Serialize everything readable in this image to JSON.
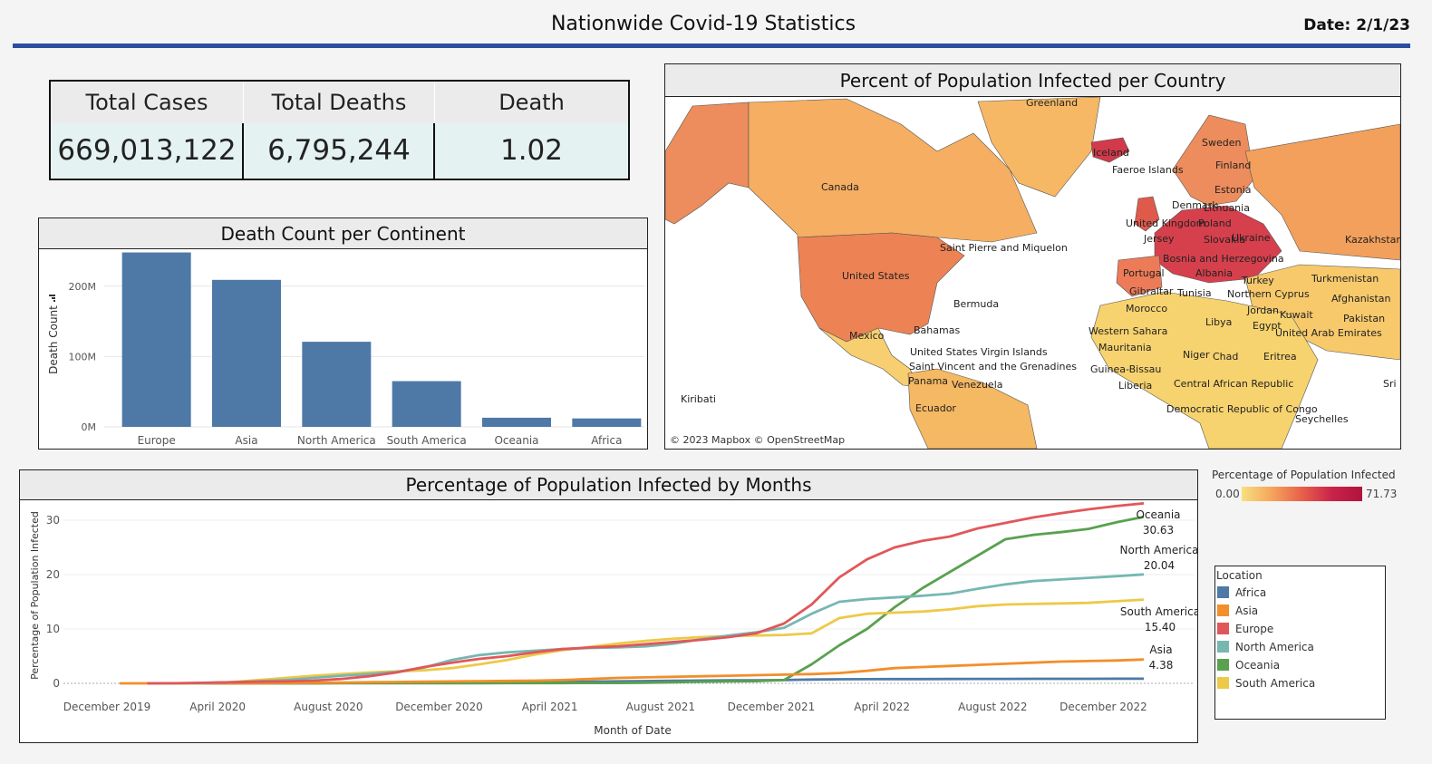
{
  "header": {
    "title": "Nationwide Covid-19 Statistics",
    "date": "Date: 2/1/23"
  },
  "kpis": {
    "total_cases_label": "Total Cases",
    "total_cases": "669,013,122",
    "total_deaths_label": "Total Deaths",
    "total_deaths": "6,795,244",
    "death_pct_label": "Death Percentage",
    "death_pct": "1.02"
  },
  "map": {
    "title": "Percent of Population Infected per Country",
    "copyright": "© 2023 Mapbox © OpenStreetMap",
    "labels": [
      "Greenland",
      "Iceland",
      "Faeroe Islands",
      "Sweden",
      "Finland",
      "Estonia",
      "Lithuania",
      "Denmark",
      "United Kingdom",
      "Poland",
      "Jersey",
      "Slovakia",
      "Ukraine",
      "Kazakhstan",
      "Bosnia and Herzegovina",
      "Albania",
      "Portugal",
      "Turkey",
      "Turkmenistan",
      "Gibraltar",
      "Tunisia",
      "Northern Cyprus",
      "Afghanistan",
      "Morocco",
      "Jordan",
      "Kuwait",
      "Pakistan",
      "Libya",
      "Egypt",
      "United Arab Emirates",
      "Western Sahara",
      "Mauritania",
      "Niger",
      "Chad",
      "Eritrea",
      "Guinea-Bissau",
      "Liberia",
      "Central African Republic",
      "Democratic Republic of Congo",
      "Seychelles",
      "Sri",
      "Canada",
      "Saint Pierre and Miquelon",
      "United States",
      "Bermuda",
      "Bahamas",
      "Mexico",
      "United States Virgin Islands",
      "Saint Vincent and the Grenadines",
      "Panama",
      "Venezuela",
      "Ecuador",
      "Kiribati"
    ],
    "legend_title": "Percentage of Population Infected",
    "legend_min": "0.00",
    "legend_max": "71.73",
    "legend_colors": [
      "#f7e07e",
      "#b0143c"
    ]
  },
  "bar_chart": {
    "title": "Death Count per Continent",
    "chart_data": {
      "type": "bar",
      "categories": [
        "Europe",
        "Asia",
        "North America",
        "South America",
        "Oceania",
        "Africa"
      ],
      "values": [
        248,
        209,
        121,
        65,
        13,
        12
      ],
      "value_unit": "M",
      "ylabel": "Death Count",
      "yticks": [
        "0M",
        "100M",
        "200M"
      ],
      "ylim": [
        0,
        250
      ],
      "color": "#4e79a7",
      "grid": true
    }
  },
  "line_chart": {
    "title": "Percentage of Population Infected by Months",
    "chart_data": {
      "type": "line",
      "xlabel": "Month of Date",
      "ylabel": "Percentage of Population Infected",
      "x_ticks": [
        "December 2019",
        "April 2020",
        "August 2020",
        "December 2020",
        "April 2021",
        "August 2021",
        "December 2021",
        "April 2022",
        "August 2022",
        "December 2022"
      ],
      "yticks": [
        "0",
        "10",
        "20",
        "30"
      ],
      "ylim": [
        0,
        33
      ],
      "x": [
        "2019-12",
        "2020-01",
        "2020-02",
        "2020-03",
        "2020-04",
        "2020-05",
        "2020-06",
        "2020-07",
        "2020-08",
        "2020-09",
        "2020-10",
        "2020-11",
        "2020-12",
        "2021-01",
        "2021-02",
        "2021-03",
        "2021-04",
        "2021-05",
        "2021-06",
        "2021-07",
        "2021-08",
        "2021-09",
        "2021-10",
        "2021-11",
        "2021-12",
        "2022-01",
        "2022-02",
        "2022-03",
        "2022-04",
        "2022-05",
        "2022-06",
        "2022-07",
        "2022-08",
        "2022-09",
        "2022-10",
        "2022-11",
        "2022-12",
        "2023-01"
      ],
      "series": [
        {
          "name": "Africa",
          "color": "#4e79a7",
          "values": [
            null,
            0,
            0,
            0,
            0,
            0.01,
            0.02,
            0.04,
            0.07,
            0.09,
            0.11,
            0.14,
            0.18,
            0.22,
            0.25,
            0.28,
            0.3,
            0.32,
            0.36,
            0.42,
            0.48,
            0.52,
            0.55,
            0.57,
            0.6,
            0.7,
            0.75,
            0.77,
            0.78,
            0.79,
            0.8,
            0.81,
            0.82,
            0.83,
            0.84,
            0.84,
            0.85,
            0.85
          ]
        },
        {
          "name": "Asia",
          "color": "#f28e2b",
          "values": [
            0,
            0,
            0,
            0.01,
            0.02,
            0.04,
            0.07,
            0.1,
            0.14,
            0.2,
            0.25,
            0.3,
            0.35,
            0.4,
            0.45,
            0.5,
            0.6,
            0.8,
            1.0,
            1.1,
            1.2,
            1.3,
            1.4,
            1.5,
            1.6,
            1.7,
            1.9,
            2.3,
            2.8,
            3.0,
            3.2,
            3.4,
            3.6,
            3.8,
            4.0,
            4.1,
            4.2,
            4.38
          ]
        },
        {
          "name": "Europe",
          "color": "#e15759",
          "values": [
            null,
            0,
            0.01,
            0.1,
            0.2,
            0.3,
            0.35,
            0.5,
            0.8,
            1.3,
            2.0,
            3.0,
            3.8,
            4.5,
            5.0,
            5.7,
            6.3,
            6.6,
            6.8,
            7.2,
            7.6,
            8.0,
            8.5,
            9.2,
            11.0,
            14.5,
            19.5,
            22.8,
            25.0,
            26.2,
            27.0,
            28.5,
            29.5,
            30.5,
            31.3,
            32.0,
            32.6,
            33.1
          ]
        },
        {
          "name": "North America",
          "color": "#76b7b2",
          "values": [
            null,
            0,
            0,
            0.05,
            0.2,
            0.4,
            0.6,
            1.0,
            1.4,
            1.7,
            2.1,
            2.9,
            4.3,
            5.2,
            5.7,
            6.0,
            6.3,
            6.5,
            6.6,
            6.8,
            7.3,
            8.1,
            8.8,
            9.4,
            10.2,
            12.8,
            15.0,
            15.5,
            15.8,
            16.1,
            16.5,
            17.4,
            18.2,
            18.8,
            19.1,
            19.4,
            19.7,
            20.04
          ]
        },
        {
          "name": "Oceania",
          "color": "#59a14f",
          "values": [
            null,
            0,
            0,
            0,
            0,
            0,
            0,
            0,
            0.02,
            0.03,
            0.03,
            0.03,
            0.04,
            0.04,
            0.05,
            0.05,
            0.05,
            0.06,
            0.07,
            0.1,
            0.2,
            0.3,
            0.35,
            0.4,
            0.6,
            3.5,
            7.0,
            10.0,
            14.0,
            17.5,
            20.5,
            23.5,
            26.5,
            27.3,
            27.8,
            28.4,
            29.6,
            30.63
          ]
        },
        {
          "name": "South America",
          "color": "#edc948",
          "values": [
            null,
            0,
            0,
            0.02,
            0.2,
            0.6,
            1.0,
            1.4,
            1.7,
            2.0,
            2.2,
            2.4,
            2.8,
            3.5,
            4.3,
            5.3,
            6.1,
            6.7,
            7.3,
            7.8,
            8.2,
            8.5,
            8.7,
            8.8,
            8.9,
            9.2,
            12.0,
            12.8,
            13.0,
            13.2,
            13.6,
            14.2,
            14.5,
            14.6,
            14.7,
            14.8,
            15.1,
            15.4
          ]
        }
      ],
      "end_labels": [
        {
          "name": "Oceania",
          "value": "30.63"
        },
        {
          "name": "North America",
          "value": "20.04"
        },
        {
          "name": "South America",
          "value": "15.40"
        },
        {
          "name": "Asia",
          "value": "4.38"
        }
      ]
    }
  },
  "legend": {
    "title": "Location",
    "items": [
      {
        "name": "Africa",
        "color": "#4e79a7"
      },
      {
        "name": "Asia",
        "color": "#f28e2b"
      },
      {
        "name": "Europe",
        "color": "#e15759"
      },
      {
        "name": "North America",
        "color": "#76b7b2"
      },
      {
        "name": "Oceania",
        "color": "#59a14f"
      },
      {
        "name": "South America",
        "color": "#edc948"
      }
    ]
  }
}
